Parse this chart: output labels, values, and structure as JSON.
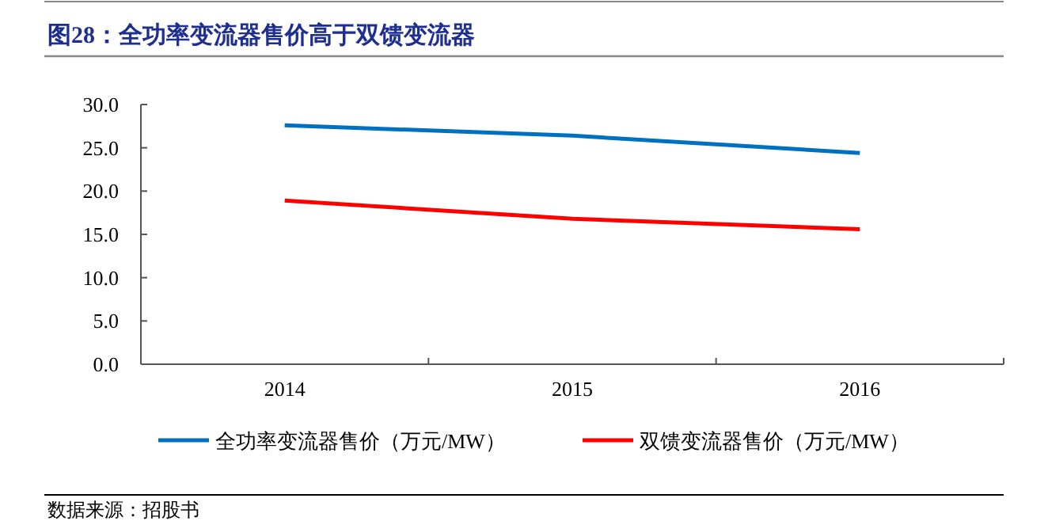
{
  "chart_data": {
    "type": "line",
    "title": "图28：全功率变流器售价高于双馈变流器",
    "categories": [
      "2014",
      "2015",
      "2016"
    ],
    "series": [
      {
        "name": "全功率变流器售价（万元/MW）",
        "color": "#0070c0",
        "values": [
          27.6,
          26.4,
          24.4
        ]
      },
      {
        "name": "双馈变流器售价（万元/MW）",
        "color": "#ff0000",
        "values": [
          18.9,
          16.8,
          15.6
        ]
      }
    ],
    "ylim": [
      0,
      30
    ],
    "yticks": [
      {
        "value": 0,
        "label": "0.0"
      },
      {
        "value": 5,
        "label": "5.0"
      },
      {
        "value": 10,
        "label": "10.0"
      },
      {
        "value": 15,
        "label": "15.0"
      },
      {
        "value": 20,
        "label": "20.0"
      },
      {
        "value": 25,
        "label": "25.0"
      },
      {
        "value": 30,
        "label": "30.0"
      }
    ],
    "grid": false,
    "legend": "bottom",
    "marker": "none",
    "line_style": "solid",
    "annotations": [
      "数据来源：招股书"
    ]
  }
}
